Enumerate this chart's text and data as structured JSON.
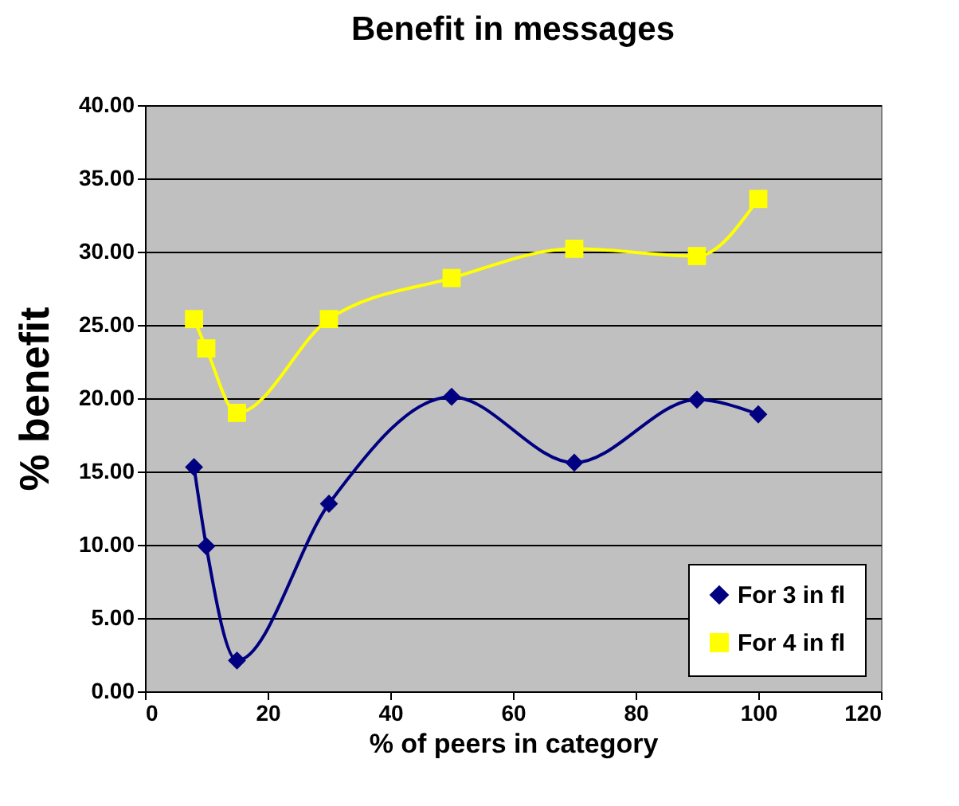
{
  "chart_data": {
    "type": "line",
    "title": "Benefit in messages",
    "xlabel": "% of peers in category",
    "ylabel": "% benefit",
    "xlim": [
      0,
      120
    ],
    "xticks": [
      0,
      20,
      40,
      60,
      80,
      100,
      120
    ],
    "ylim": [
      0,
      40
    ],
    "yticks": [
      {
        "value": 0,
        "label": "0.00"
      },
      {
        "value": 5,
        "label": "5.00"
      },
      {
        "value": 10,
        "label": "10.00"
      },
      {
        "value": 15,
        "label": "15.00"
      },
      {
        "value": 20,
        "label": "20.00"
      },
      {
        "value": 25,
        "label": "25.00"
      },
      {
        "value": 30,
        "label": "30.00"
      },
      {
        "value": 35,
        "label": "35.00"
      },
      {
        "value": 40,
        "label": "40.00"
      }
    ],
    "grid": "y",
    "legend": "bottom right",
    "x": [
      8,
      10,
      15,
      30,
      50,
      70,
      90,
      100
    ],
    "series": [
      {
        "name": "For 3 in fl",
        "color": "#000080",
        "marker": "diamond",
        "values": [
          15.3,
          9.9,
          2.1,
          12.8,
          20.1,
          15.6,
          19.9,
          18.9
        ]
      },
      {
        "name": "For 4 in fl",
        "color": "#ffff00",
        "marker": "square",
        "values": [
          25.4,
          23.4,
          19.0,
          25.4,
          28.2,
          30.2,
          29.7,
          33.6
        ]
      }
    ]
  }
}
